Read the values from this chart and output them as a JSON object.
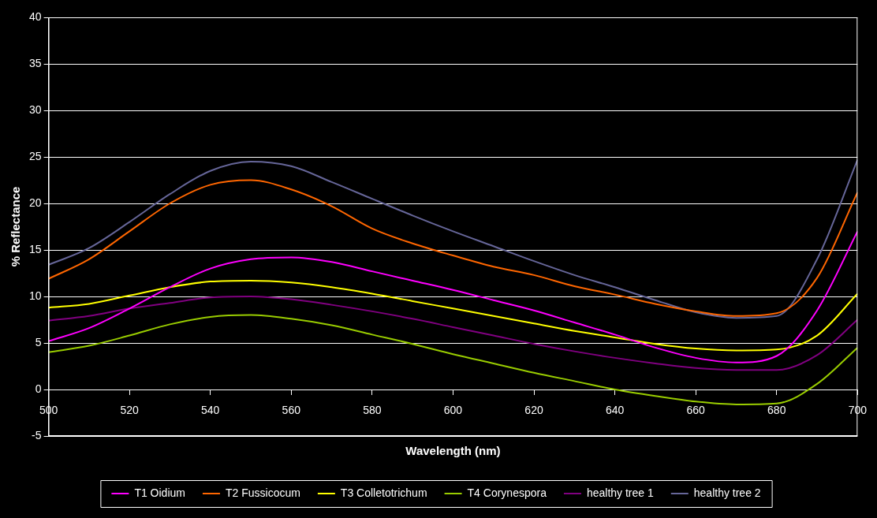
{
  "chart_data": {
    "type": "line",
    "xlabel": "Wavelength (nm)",
    "ylabel": "% Reflectance",
    "x": [
      500,
      510,
      520,
      530,
      540,
      550,
      560,
      570,
      580,
      590,
      600,
      610,
      620,
      630,
      640,
      650,
      660,
      670,
      680,
      690,
      700
    ],
    "xlim": [
      500,
      700
    ],
    "xticks": [
      500,
      520,
      540,
      560,
      580,
      600,
      620,
      640,
      660,
      680,
      700
    ],
    "ylim": [
      -5,
      40
    ],
    "yticks": [
      -5,
      0,
      5,
      10,
      15,
      20,
      25,
      30,
      35,
      40
    ],
    "grid": "y",
    "legend": "bottom",
    "marker": "none",
    "line_style": "solid",
    "series": [
      {
        "name": "T1 Oidium",
        "color": "#ff00ff",
        "values": [
          5.2,
          6.6,
          8.7,
          11,
          13,
          14,
          14.2,
          13.7,
          12.7,
          11.7,
          10.7,
          9.6,
          8.5,
          7.2,
          5.9,
          4.5,
          3.4,
          2.9,
          3.6,
          8.5,
          17
        ]
      },
      {
        "name": "T2 Fussicocum",
        "color": "#ff6600",
        "values": [
          11.9,
          14,
          17,
          20,
          22,
          22.5,
          21.5,
          19.7,
          17.3,
          15.7,
          14.4,
          13.2,
          12.3,
          11.1,
          10.2,
          9.2,
          8.4,
          7.9,
          8.2,
          12,
          21.2
        ]
      },
      {
        "name": "T3 Colletotrichum",
        "color": "#ffff00",
        "values": [
          8.8,
          9.2,
          10.1,
          11,
          11.6,
          11.7,
          11.5,
          11,
          10.3,
          9.5,
          8.7,
          7.9,
          7.1,
          6.3,
          5.6,
          4.9,
          4.4,
          4.2,
          4.3,
          5.8,
          10.3
        ]
      },
      {
        "name": "T4 Corynespora",
        "color": "#99cc00",
        "values": [
          4,
          4.7,
          5.8,
          7,
          7.8,
          8,
          7.6,
          6.9,
          5.9,
          4.9,
          3.8,
          2.8,
          1.8,
          0.9,
          0,
          -0.7,
          -1.3,
          -1.6,
          -1.5,
          0.6,
          4.5
        ]
      },
      {
        "name": "healthy tree 1",
        "color": "#800080",
        "values": [
          7.4,
          7.9,
          8.7,
          9.3,
          9.9,
          10,
          9.7,
          9.1,
          8.4,
          7.6,
          6.7,
          5.8,
          4.9,
          4.1,
          3.4,
          2.8,
          2.3,
          2.1,
          2.1,
          3.7,
          7.5
        ]
      },
      {
        "name": "healthy tree 2",
        "color": "#666699",
        "values": [
          13.4,
          15.2,
          18,
          21,
          23.5,
          24.5,
          24,
          22.3,
          20.5,
          18.7,
          17,
          15.4,
          13.8,
          12.3,
          11,
          9.6,
          8.3,
          7.7,
          7.9,
          14,
          24.7
        ]
      }
    ]
  }
}
